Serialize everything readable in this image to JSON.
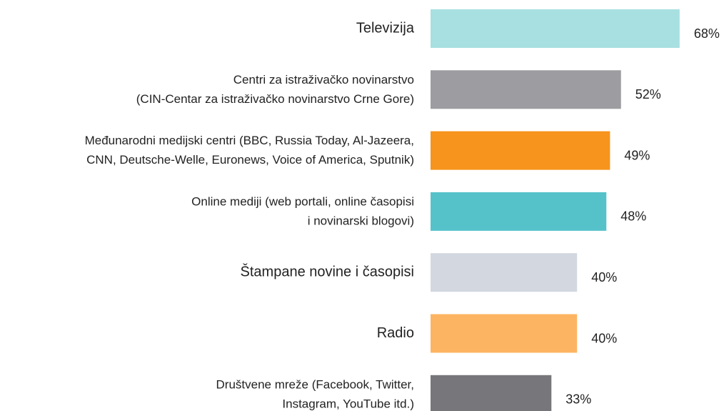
{
  "chart_data": {
    "type": "bar",
    "orientation": "horizontal",
    "categories": [
      [
        "Televizija"
      ],
      [
        "Centri za istraživačko novinarstvo",
        "(CIN-Centar za istraživačko novinarstvo Crne Gore)"
      ],
      [
        "Međunarodni medijski centri (BBC, Russia Today, Al-Jazeera,",
        "CNN, Deutsche-Welle, Euronews, Voice of America, Sputnik)"
      ],
      [
        "Online mediji (web portali, online časopisi",
        "i novinarski blogovi)"
      ],
      [
        "Štampane novine i časopisi"
      ],
      [
        "Radio"
      ],
      [
        "Društvene mreže (Facebook, Twitter,",
        "Instagram, YouTube itd.)"
      ]
    ],
    "values": [
      68,
      52,
      49,
      48,
      40,
      40,
      33
    ],
    "value_labels": [
      "68%",
      "52%",
      "49%",
      "48%",
      "40%",
      "40%",
      "33%"
    ],
    "colors": [
      "#a8e0e1",
      "#9d9da1",
      "#f7941d",
      "#55c2ca",
      "#d3d7df",
      "#fdb462",
      "#77777b"
    ]
  }
}
